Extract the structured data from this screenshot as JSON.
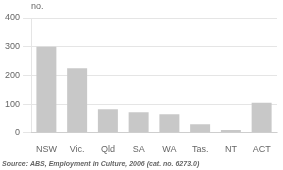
{
  "chart_data": {
    "type": "bar",
    "categories": [
      "NSW",
      "Vic.",
      "Qld",
      "SA",
      "WA",
      "Tas.",
      "NT",
      "ACT"
    ],
    "values": [
      300,
      225,
      82,
      72,
      65,
      30,
      10,
      105
    ],
    "color": "#c8c8c8",
    "ylabel": "no.",
    "annotations": [
      "Source: ABS, Employment in Culture, 2006 (cat. no. 6273.0)"
    ],
    "ylim": [
      0,
      400
    ],
    "yticks": [
      0,
      100,
      200,
      300,
      400
    ],
    "grid": true
  }
}
